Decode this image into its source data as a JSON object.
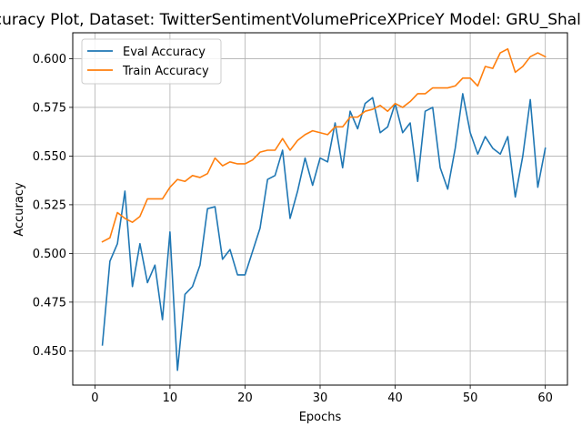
{
  "chart_data": {
    "type": "line",
    "title": "Accuracy Plot, Dataset: TwitterSentimentVolumePriceXPriceY Model: GRU_Shallow",
    "xlabel": "Epochs",
    "ylabel": "Accuracy",
    "xlim": [
      -2.95,
      62.95
    ],
    "ylim": [
      0.4324,
      0.6133
    ],
    "xticks": [
      0,
      10,
      20,
      30,
      40,
      50,
      60
    ],
    "xtick_labels": [
      "0",
      "10",
      "20",
      "30",
      "40",
      "50",
      "60"
    ],
    "yticks": [
      0.45,
      0.475,
      0.5,
      0.525,
      0.55,
      0.575,
      0.6
    ],
    "ytick_labels": [
      "0.450",
      "0.475",
      "0.500",
      "0.525",
      "0.550",
      "0.575",
      "0.600"
    ],
    "grid": true,
    "legend_position": "upper-left",
    "x": [
      1,
      2,
      3,
      4,
      5,
      6,
      7,
      8,
      9,
      10,
      11,
      12,
      13,
      14,
      15,
      16,
      17,
      18,
      19,
      20,
      21,
      22,
      23,
      24,
      25,
      26,
      27,
      28,
      29,
      30,
      31,
      32,
      33,
      34,
      35,
      36,
      37,
      38,
      39,
      40,
      41,
      42,
      43,
      44,
      45,
      46,
      47,
      48,
      49,
      50,
      51,
      52,
      53,
      54,
      55,
      56,
      57,
      58,
      59,
      60
    ],
    "series": [
      {
        "name": "Eval Accuracy",
        "color": "#1f77b4",
        "values": [
          0.453,
          0.496,
          0.505,
          0.532,
          0.483,
          0.505,
          0.485,
          0.494,
          0.466,
          0.511,
          0.44,
          0.479,
          0.483,
          0.494,
          0.523,
          0.524,
          0.497,
          0.502,
          0.489,
          0.489,
          0.501,
          0.513,
          0.538,
          0.54,
          0.553,
          0.518,
          0.532,
          0.549,
          0.535,
          0.549,
          0.547,
          0.567,
          0.544,
          0.573,
          0.564,
          0.577,
          0.58,
          0.562,
          0.565,
          0.577,
          0.562,
          0.567,
          0.537,
          0.573,
          0.575,
          0.544,
          0.533,
          0.554,
          0.582,
          0.562,
          0.551,
          0.56,
          0.554,
          0.551,
          0.56,
          0.529,
          0.55,
          0.579,
          0.534,
          0.554
        ]
      },
      {
        "name": "Train Accuracy",
        "color": "#ff7f0e",
        "values": [
          0.506,
          0.508,
          0.521,
          0.518,
          0.516,
          0.519,
          0.528,
          0.528,
          0.528,
          0.534,
          0.538,
          0.537,
          0.54,
          0.539,
          0.541,
          0.549,
          0.545,
          0.547,
          0.546,
          0.546,
          0.548,
          0.552,
          0.553,
          0.553,
          0.559,
          0.553,
          0.558,
          0.561,
          0.563,
          0.562,
          0.561,
          0.565,
          0.565,
          0.57,
          0.57,
          0.573,
          0.574,
          0.576,
          0.573,
          0.577,
          0.575,
          0.578,
          0.582,
          0.582,
          0.585,
          0.585,
          0.585,
          0.586,
          0.59,
          0.59,
          0.586,
          0.596,
          0.595,
          0.603,
          0.605,
          0.593,
          0.596,
          0.601,
          0.603,
          0.601
        ]
      }
    ]
  }
}
